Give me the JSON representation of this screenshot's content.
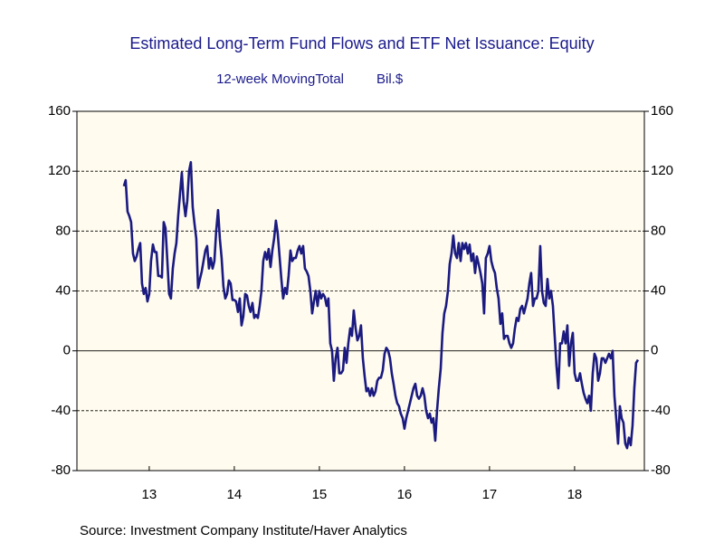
{
  "chart_data": {
    "type": "line",
    "title": "Estimated Long-Term Fund Flows and ETF Net Issuance: Equity",
    "subtitle": "12-week MovingTotal",
    "unit_label": "Bil.$",
    "source": "Source:  Investment Company Institute/Haver Analytics",
    "xlim": [
      2012.65,
      2019.32
    ],
    "xticks": [
      {
        "value": 2013.5,
        "label": "13"
      },
      {
        "value": 2014.5,
        "label": "14"
      },
      {
        "value": 2015.5,
        "label": "15"
      },
      {
        "value": 2016.5,
        "label": "16"
      },
      {
        "value": 2017.5,
        "label": "17"
      },
      {
        "value": 2018.5,
        "label": "18"
      }
    ],
    "ylim": [
      -80,
      160
    ],
    "yticks": [
      -80,
      -40,
      0,
      40,
      80,
      120,
      160
    ],
    "y2lim": [
      -80,
      160
    ],
    "y2ticks": [
      -80,
      -40,
      0,
      40,
      80,
      120,
      160
    ],
    "grid": true,
    "x": [
      2013.202,
      2013.223,
      2013.245,
      2013.266,
      2013.287,
      2013.309,
      2013.33,
      2013.351,
      2013.372,
      2013.394,
      2013.415,
      2013.436,
      2013.457,
      2013.479,
      2013.5,
      2013.521,
      2013.543,
      2013.564,
      2013.585,
      2013.606,
      2013.628,
      2013.649,
      2013.67,
      2013.691,
      2013.713,
      2013.734,
      2013.755,
      2013.777,
      2013.798,
      2013.819,
      2013.84,
      2013.862,
      2013.883,
      2013.904,
      2013.926,
      2013.947,
      2013.968,
      2013.989,
      2014.011,
      2014.032,
      2014.053,
      2014.074,
      2014.096,
      2014.117,
      2014.138,
      2014.16,
      2014.181,
      2014.202,
      2014.223,
      2014.245,
      2014.266,
      2014.287,
      2014.309,
      2014.33,
      2014.351,
      2014.372,
      2014.394,
      2014.415,
      2014.436,
      2014.457,
      2014.479,
      2014.5,
      2014.521,
      2014.543,
      2014.564,
      2014.585,
      2014.606,
      2014.628,
      2014.649,
      2014.67,
      2014.691,
      2014.713,
      2014.734,
      2014.755,
      2014.777,
      2014.798,
      2014.819,
      2014.84,
      2014.862,
      2014.883,
      2014.904,
      2014.926,
      2014.947,
      2014.968,
      2014.989,
      2015.011,
      2015.032,
      2015.053,
      2015.074,
      2015.096,
      2015.117,
      2015.138,
      2015.16,
      2015.181,
      2015.202,
      2015.223,
      2015.245,
      2015.266,
      2015.287,
      2015.309,
      2015.33,
      2015.351,
      2015.372,
      2015.394,
      2015.415,
      2015.436,
      2015.457,
      2015.479,
      2015.5,
      2015.521,
      2015.543,
      2015.564,
      2015.585,
      2015.606,
      2015.628,
      2015.649,
      2015.67,
      2015.691,
      2015.713,
      2015.734,
      2015.755,
      2015.777,
      2015.798,
      2015.819,
      2015.84,
      2015.862,
      2015.883,
      2015.904,
      2015.926,
      2015.947,
      2015.968,
      2015.989,
      2016.011,
      2016.032,
      2016.053,
      2016.074,
      2016.096,
      2016.117,
      2016.138,
      2016.16,
      2016.181,
      2016.202,
      2016.223,
      2016.245,
      2016.266,
      2016.287,
      2016.309,
      2016.33,
      2016.351,
      2016.372,
      2016.394,
      2016.415,
      2016.436,
      2016.457,
      2016.479,
      2016.5,
      2016.521,
      2016.543,
      2016.564,
      2016.585,
      2016.606,
      2016.628,
      2016.649,
      2016.67,
      2016.691,
      2016.713,
      2016.734,
      2016.755,
      2016.777,
      2016.798,
      2016.819,
      2016.84,
      2016.862,
      2016.883,
      2016.904,
      2016.926,
      2016.947,
      2016.968,
      2016.989,
      2017.011,
      2017.032,
      2017.053,
      2017.074,
      2017.096,
      2017.117,
      2017.138,
      2017.16,
      2017.181,
      2017.202,
      2017.223,
      2017.245,
      2017.266,
      2017.287,
      2017.309,
      2017.33,
      2017.351,
      2017.372,
      2017.394,
      2017.415,
      2017.436,
      2017.457,
      2017.479,
      2017.5,
      2017.521,
      2017.543,
      2017.564,
      2017.585,
      2017.606,
      2017.628,
      2017.649,
      2017.67,
      2017.691,
      2017.713,
      2017.734,
      2017.755,
      2017.777,
      2017.798,
      2017.819,
      2017.84,
      2017.862,
      2017.883,
      2017.904,
      2017.926,
      2017.947,
      2017.968,
      2017.989,
      2018.011,
      2018.032,
      2018.053,
      2018.074,
      2018.096,
      2018.117,
      2018.138,
      2018.16,
      2018.181,
      2018.202,
      2018.223,
      2018.245,
      2018.266,
      2018.287,
      2018.309,
      2018.33,
      2018.351,
      2018.372,
      2018.394,
      2018.415,
      2018.436,
      2018.457,
      2018.479,
      2018.5,
      2018.521,
      2018.543,
      2018.564,
      2018.585,
      2018.606,
      2018.628,
      2018.649,
      2018.67,
      2018.691,
      2018.713,
      2018.734,
      2018.755,
      2018.777,
      2018.798,
      2018.819,
      2018.84,
      2018.862,
      2018.883,
      2018.904,
      2018.926,
      2018.947,
      2018.968,
      2018.989,
      2019.011,
      2019.032,
      2019.053,
      2019.074,
      2019.096,
      2019.117,
      2019.138,
      2019.16,
      2019.181,
      2019.202,
      2019.223,
      2019.245
    ],
    "series": [
      {
        "color": "#1a1a80",
        "values": [
          110,
          114,
          93,
          90,
          86,
          65,
          60,
          63,
          68,
          72,
          45,
          38,
          42,
          33,
          38,
          60,
          71,
          66,
          66,
          50,
          50,
          49,
          86,
          82,
          60,
          38,
          35,
          55,
          65,
          72,
          90,
          105,
          119,
          100,
          90,
          100,
          120,
          126,
          96,
          85,
          75,
          42,
          48,
          53,
          60,
          67,
          70,
          55,
          62,
          55,
          60,
          80,
          94,
          75,
          62,
          43,
          35,
          38,
          47,
          45,
          34,
          34,
          33,
          26,
          35,
          17,
          23,
          38,
          37,
          30,
          26,
          32,
          22,
          24,
          22,
          30,
          40,
          60,
          66,
          61,
          68,
          56,
          67,
          75,
          87,
          78,
          63,
          48,
          35,
          42,
          38,
          50,
          67,
          60,
          62,
          62,
          67,
          70,
          65,
          70,
          55,
          53,
          50,
          40,
          25,
          33,
          40,
          30,
          40,
          35,
          38,
          36,
          30,
          35,
          5,
          0,
          -20,
          -5,
          2,
          -15,
          -15,
          -13,
          2,
          -8,
          5,
          15,
          10,
          27,
          15,
          7,
          10,
          17,
          -5,
          -17,
          -27,
          -25,
          -30,
          -25,
          -30,
          -27,
          -20,
          -18,
          -18,
          -13,
          -2,
          2,
          0,
          -5,
          -15,
          -22,
          -30,
          -35,
          -37,
          -42,
          -45,
          -52,
          -45,
          -40,
          -35,
          -30,
          -25,
          -22,
          -30,
          -32,
          -30,
          -25,
          -30,
          -40,
          -45,
          -42,
          -48,
          -45,
          -60,
          -40,
          -25,
          -12,
          12,
          25,
          30,
          40,
          58,
          65,
          77,
          65,
          62,
          72,
          60,
          72,
          68,
          72,
          65,
          71,
          60,
          65,
          52,
          63,
          58,
          52,
          45,
          25,
          62,
          65,
          70,
          60,
          55,
          52,
          42,
          35,
          18,
          25,
          8,
          10,
          10,
          5,
          2,
          5,
          15,
          22,
          20,
          28,
          30,
          25,
          30,
          35,
          45,
          52,
          30,
          35,
          35,
          40,
          70,
          40,
          32,
          30,
          48,
          35,
          40,
          30,
          10,
          -10,
          -25,
          5,
          5,
          13,
          5,
          17,
          -10,
          5,
          12,
          -15,
          -20,
          -20,
          -15,
          -22,
          -28,
          -32,
          -35,
          -30,
          -40,
          -15,
          -2,
          -5,
          -20,
          -15,
          -5,
          -5,
          -8,
          -5,
          -2,
          -5,
          0,
          -30,
          -45,
          -62,
          -37,
          -45,
          -48,
          -62,
          -65,
          -58,
          -63,
          -50,
          -25,
          -8,
          -6
        ]
      }
    ]
  }
}
